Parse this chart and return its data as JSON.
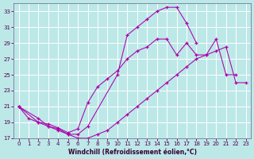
{
  "xlabel": "Windchill (Refroidissement éolien,°C)",
  "background_color": "#bde8e8",
  "grid_color": "#ffffff",
  "line_color": "#aa00aa",
  "xlim": [
    -0.5,
    23.5
  ],
  "ylim": [
    17,
    34
  ],
  "yticks": [
    17,
    19,
    21,
    23,
    25,
    27,
    29,
    31,
    33
  ],
  "xticks": [
    0,
    1,
    2,
    3,
    4,
    5,
    6,
    7,
    8,
    9,
    10,
    11,
    12,
    13,
    14,
    15,
    16,
    17,
    18,
    19,
    20,
    21,
    22,
    23
  ],
  "series1_x": [
    0,
    1,
    2,
    3,
    4,
    5,
    6,
    7,
    10,
    11,
    12,
    13,
    14,
    15,
    16,
    17,
    18
  ],
  "series1_y": [
    21,
    19.5,
    19,
    18.5,
    18.0,
    17.5,
    17.5,
    18.5,
    25.0,
    30.0,
    31.0,
    32.0,
    33.0,
    33.5,
    33.5,
    31.5,
    29.0
  ],
  "series2_x": [
    0,
    2,
    3,
    4,
    5,
    6,
    7,
    8,
    9,
    10,
    11,
    12,
    13,
    14,
    15,
    16,
    17,
    18,
    19,
    20,
    21,
    22
  ],
  "series2_y": [
    21,
    19.0,
    18.8,
    18.3,
    17.7,
    18.2,
    21.5,
    23.5,
    24.5,
    25.5,
    27.0,
    28.0,
    28.5,
    29.5,
    29.5,
    27.5,
    29.0,
    27.5,
    27.5,
    29.5,
    25.0,
    25.0
  ],
  "series3_x": [
    0,
    2,
    3,
    4,
    5,
    6,
    7,
    8,
    9,
    10,
    11,
    12,
    13,
    14,
    15,
    16,
    17,
    18,
    19,
    20,
    21,
    22,
    23
  ],
  "series3_y": [
    21,
    19.5,
    18.5,
    18.2,
    17.5,
    17.0,
    17.0,
    17.5,
    18.0,
    19.0,
    20.0,
    21.0,
    22.0,
    23.0,
    24.0,
    25.0,
    26.0,
    27.0,
    27.5,
    28.0,
    28.5,
    24.0,
    24.0
  ]
}
